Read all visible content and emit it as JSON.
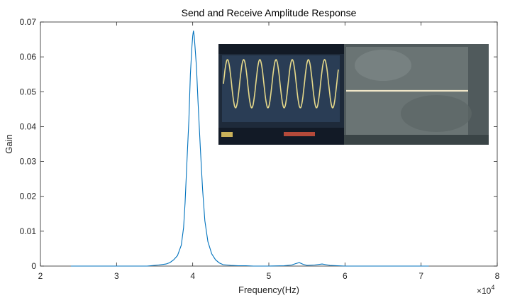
{
  "chart_data": {
    "type": "line",
    "title": "Send and Receive Amplitude Response",
    "xlabel": "Frequency(Hz)",
    "ylabel": "Gain",
    "x_multiplier_label": "×10",
    "x_multiplier_exp": "4",
    "xlim": [
      2,
      8
    ],
    "ylim": [
      0,
      0.07
    ],
    "x_ticks": [
      "2",
      "3",
      "4",
      "5",
      "6",
      "7",
      "8"
    ],
    "y_ticks": [
      "0",
      "0.01",
      "0.02",
      "0.03",
      "0.04",
      "0.05",
      "0.06",
      "0.07"
    ],
    "grid": false,
    "line_color": "#0072bd",
    "series": [
      {
        "x": [
          2.4,
          3.0,
          3.4,
          3.55,
          3.65,
          3.7,
          3.75,
          3.8,
          3.85,
          3.88,
          3.9,
          3.92,
          3.95,
          3.97,
          3.99,
          4.0,
          4.01,
          4.02,
          4.03,
          4.05,
          4.07,
          4.1,
          4.13,
          4.16,
          4.2,
          4.25,
          4.3,
          4.35,
          4.4,
          4.5,
          4.6,
          4.7,
          4.8,
          5.0,
          5.2,
          5.3,
          5.35,
          5.4,
          5.45,
          5.5,
          5.6,
          5.7,
          5.75,
          5.8,
          5.9,
          6.0,
          6.5,
          7.0,
          7.1
        ],
        "y": [
          0.0,
          0.0,
          0.0,
          0.0003,
          0.0006,
          0.001,
          0.0018,
          0.003,
          0.006,
          0.011,
          0.018,
          0.028,
          0.042,
          0.055,
          0.063,
          0.066,
          0.0675,
          0.066,
          0.063,
          0.057,
          0.047,
          0.034,
          0.022,
          0.013,
          0.007,
          0.0035,
          0.0018,
          0.0009,
          0.0004,
          0.0002,
          0.0001,
          0.0001,
          0.0,
          0.0,
          0.0001,
          0.0003,
          0.0007,
          0.001,
          0.0005,
          0.0002,
          0.0003,
          0.0006,
          0.0004,
          0.0002,
          0.0001,
          0.0,
          0.0,
          0.0,
          0.0
        ]
      }
    ]
  },
  "inset": {
    "left_panel_color": "#1e2a3a",
    "right_panel_color": "#505a5c",
    "sine_color": "#e6d98a",
    "trace_color": "#f0e6c8"
  }
}
